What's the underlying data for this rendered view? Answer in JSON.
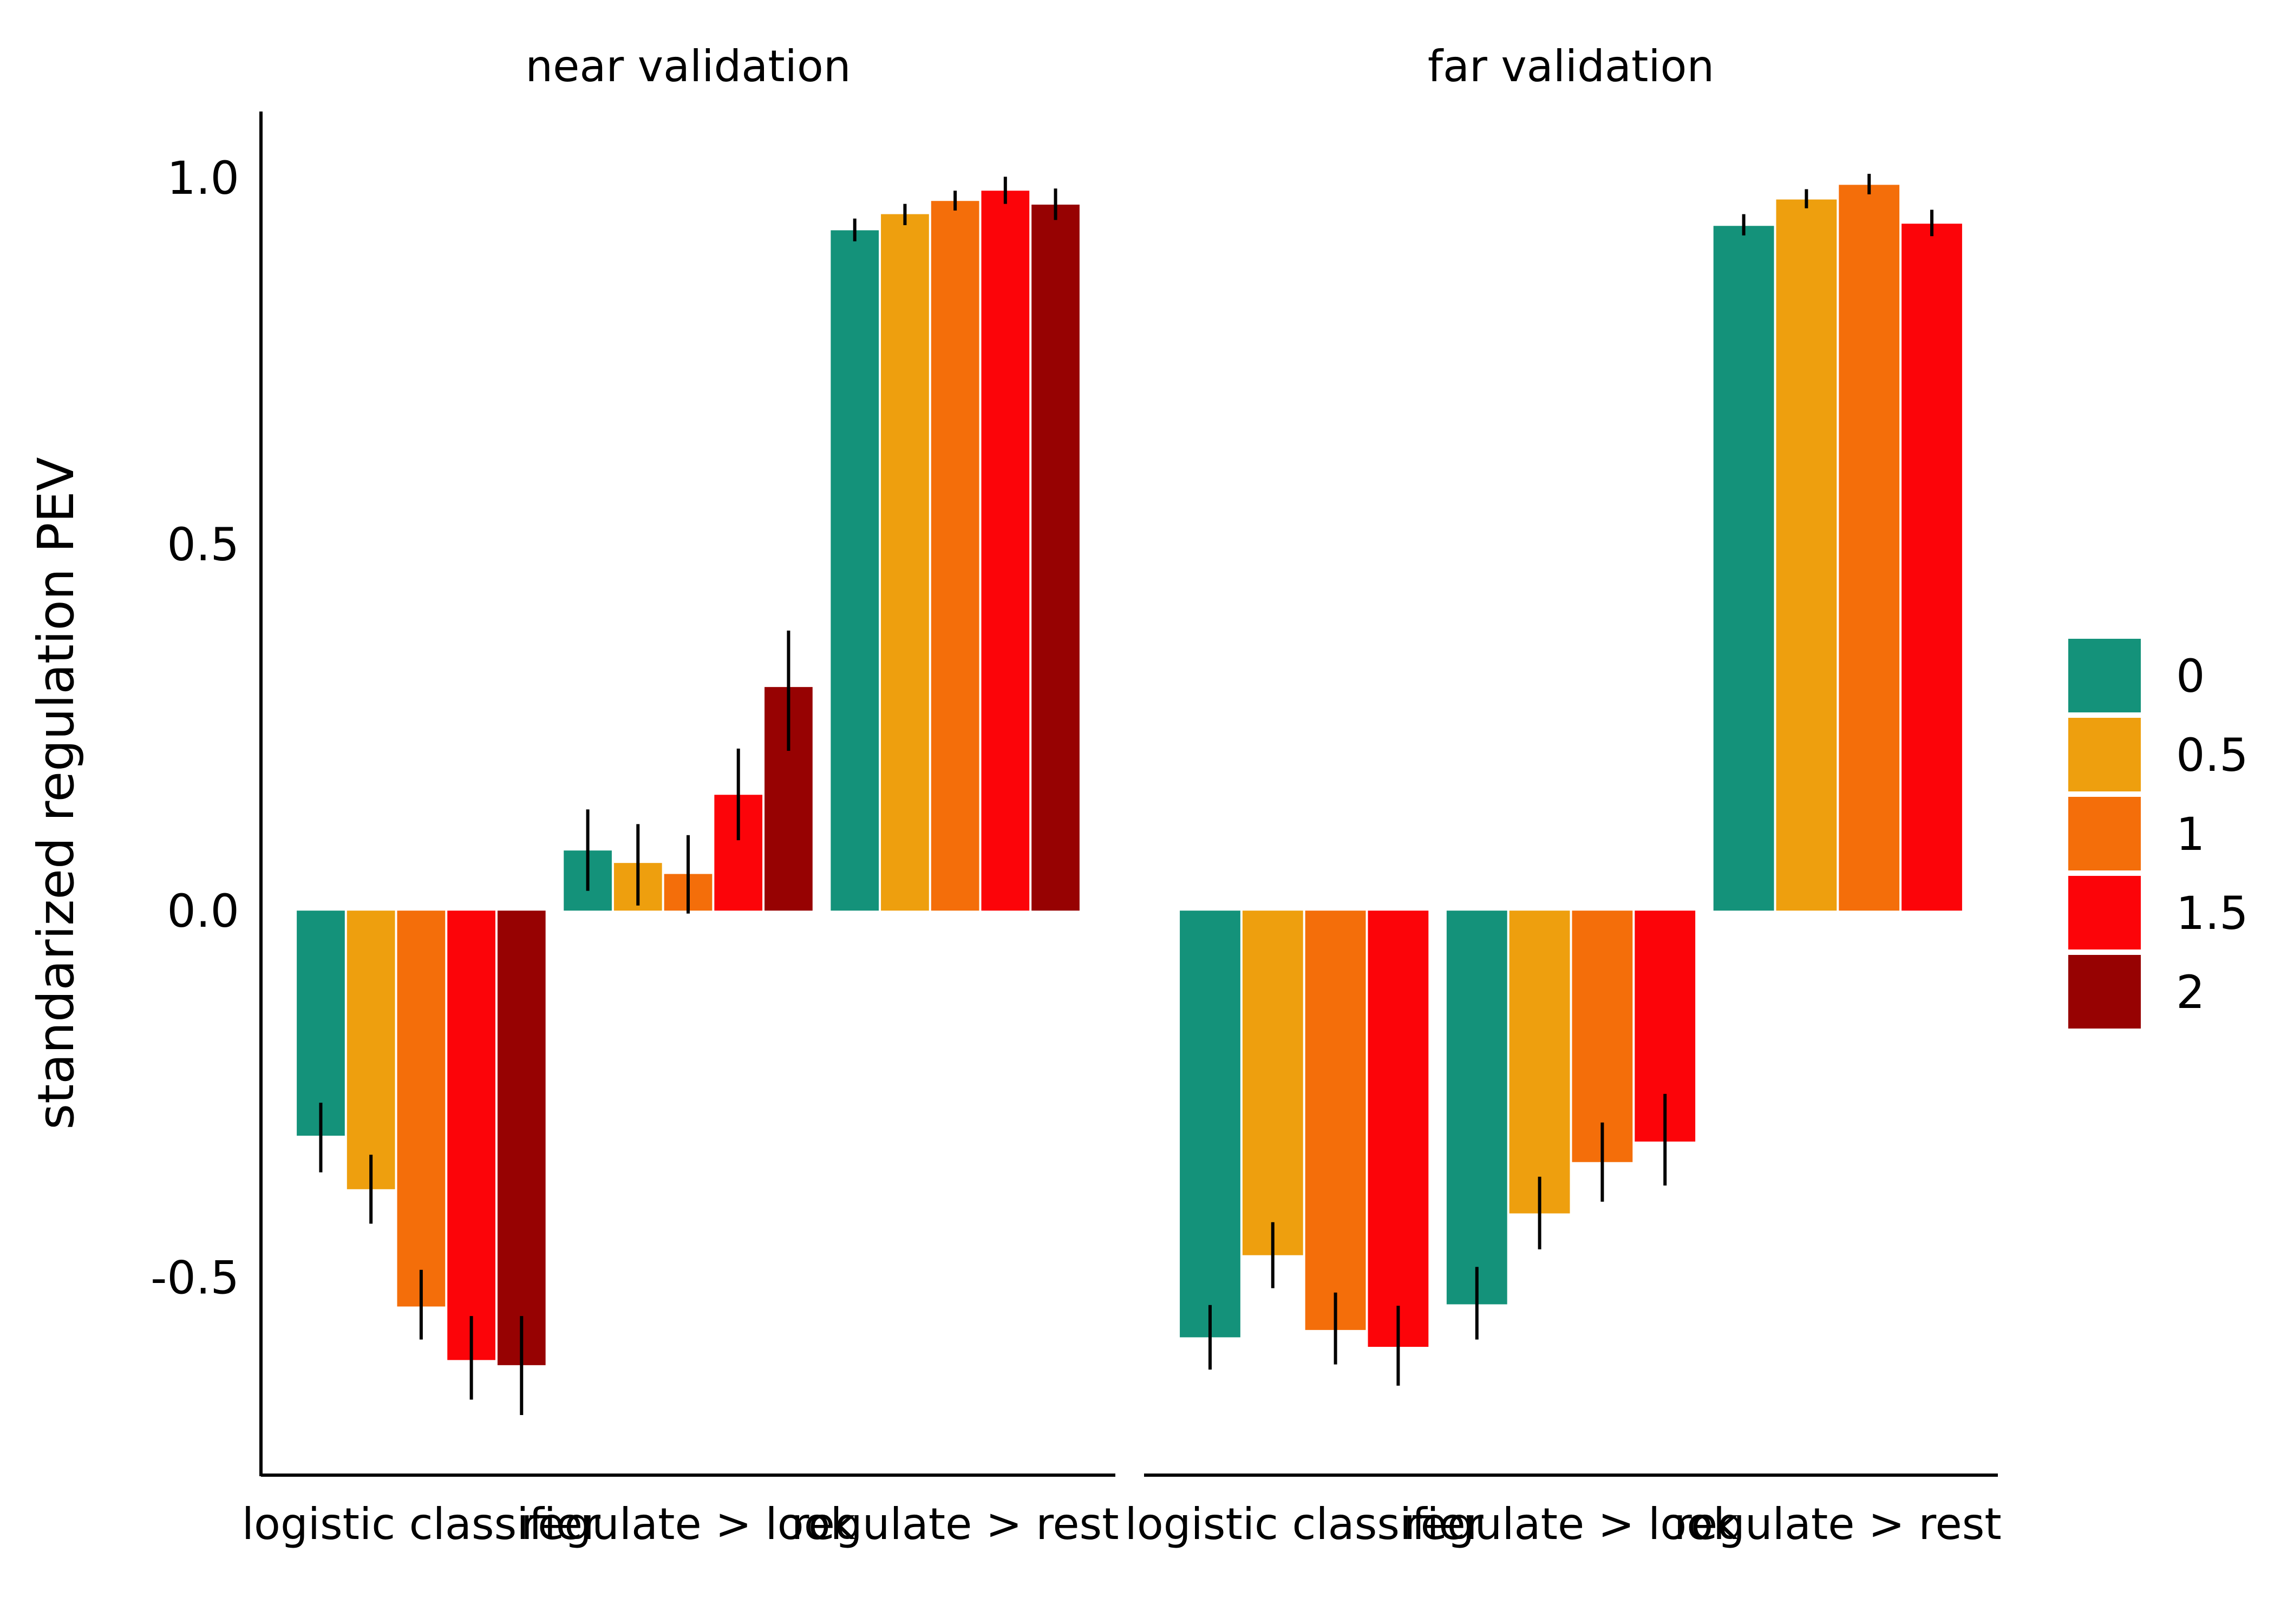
{
  "chart_data": {
    "type": "bar",
    "ylabel": "standarized regulation PEV",
    "xlabel": "",
    "ylim": [
      -0.77,
      1.09
    ],
    "yticks": [
      {
        "value": -0.5,
        "label": "-0.5"
      },
      {
        "value": 0.0,
        "label": "0.0"
      },
      {
        "value": 0.5,
        "label": "0.5"
      },
      {
        "value": 1.0,
        "label": "1.0"
      }
    ],
    "grid": false,
    "legend": {
      "placement": "right",
      "entries": [
        {
          "label": "0",
          "color": "#14927A"
        },
        {
          "label": "0.5",
          "color": "#EE9F0E"
        },
        {
          "label": "1",
          "color": "#F46E0A"
        },
        {
          "label": "1.5",
          "color": "#FC0409"
        },
        {
          "label": "2",
          "color": "#970202"
        }
      ]
    },
    "facets": [
      {
        "title": "near validation",
        "categories": [
          "logistic classifier",
          "regulate > look",
          "regulate > rest"
        ],
        "groups": [
          {
            "category": "logistic classifier",
            "bars": [
              {
                "series": "0",
                "value": -0.307,
                "err_low": -0.357,
                "err_high": -0.262
              },
              {
                "series": "0.5",
                "value": -0.38,
                "err_low": -0.427,
                "err_high": -0.333
              },
              {
                "series": "1",
                "value": -0.54,
                "err_low": -0.585,
                "err_high": -0.49
              },
              {
                "series": "1.5",
                "value": -0.613,
                "err_low": -0.667,
                "err_high": -0.553
              },
              {
                "series": "2",
                "value": -0.62,
                "err_low": -0.688,
                "err_high": -0.553
              }
            ]
          },
          {
            "category": "regulate > look",
            "bars": [
              {
                "series": "0",
                "value": 0.082,
                "err_low": 0.027,
                "err_high": 0.138
              },
              {
                "series": "0.5",
                "value": 0.065,
                "err_low": 0.007,
                "err_high": 0.118
              },
              {
                "series": "1",
                "value": 0.05,
                "err_low": -0.004,
                "err_high": 0.103
              },
              {
                "series": "1.5",
                "value": 0.158,
                "err_low": 0.096,
                "err_high": 0.221
              },
              {
                "series": "2",
                "value": 0.305,
                "err_low": 0.218,
                "err_high": 0.382
              }
            ]
          },
          {
            "category": "regulate > rest",
            "bars": [
              {
                "series": "0",
                "value": 0.928,
                "err_low": 0.913,
                "err_high": 0.944
              },
              {
                "series": "0.5",
                "value": 0.95,
                "err_low": 0.935,
                "err_high": 0.964
              },
              {
                "series": "1",
                "value": 0.968,
                "err_low": 0.955,
                "err_high": 0.982
              },
              {
                "series": "1.5",
                "value": 0.982,
                "err_low": 0.964,
                "err_high": 1.001
              },
              {
                "series": "2",
                "value": 0.963,
                "err_low": 0.942,
                "err_high": 0.985
              }
            ]
          }
        ]
      },
      {
        "title": "far validation",
        "categories": [
          "logistic classifier",
          "regulate > look",
          "regulate > rest"
        ],
        "groups": [
          {
            "category": "logistic classifier",
            "bars": [
              {
                "series": "0",
                "value": -0.582,
                "err_low": -0.626,
                "err_high": -0.538
              },
              {
                "series": "0.5",
                "value": -0.47,
                "err_low": -0.515,
                "err_high": -0.425
              },
              {
                "series": "1",
                "value": -0.572,
                "err_low": -0.619,
                "err_high": -0.521
              },
              {
                "series": "1.5",
                "value": -0.595,
                "err_low": -0.648,
                "err_high": -0.539
              }
            ]
          },
          {
            "category": "regulate > look",
            "bars": [
              {
                "series": "0",
                "value": -0.537,
                "err_low": -0.585,
                "err_high": -0.486
              },
              {
                "series": "0.5",
                "value": -0.413,
                "err_low": -0.462,
                "err_high": -0.363
              },
              {
                "series": "1",
                "value": -0.343,
                "err_low": -0.397,
                "err_high": -0.289
              },
              {
                "series": "1.5",
                "value": -0.315,
                "err_low": -0.375,
                "err_high": -0.25
              }
            ]
          },
          {
            "category": "regulate > rest",
            "bars": [
              {
                "series": "0",
                "value": 0.934,
                "err_low": 0.921,
                "err_high": 0.95
              },
              {
                "series": "0.5",
                "value": 0.97,
                "err_low": 0.958,
                "err_high": 0.984
              },
              {
                "series": "1",
                "value": 0.99,
                "err_low": 0.977,
                "err_high": 1.005
              },
              {
                "series": "1.5",
                "value": 0.937,
                "err_low": 0.92,
                "err_high": 0.956
              }
            ]
          }
        ]
      }
    ]
  }
}
